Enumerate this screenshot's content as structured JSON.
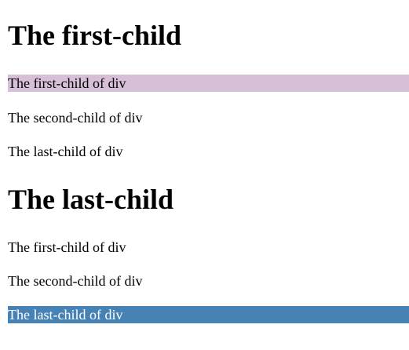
{
  "sections": [
    {
      "heading": "The first-child",
      "items": [
        "The first-child of div",
        "The second-child of div",
        "The last-child of div"
      ],
      "highlight_color": "#d8bfd8"
    },
    {
      "heading": "The last-child",
      "items": [
        "The first-child of div",
        "The second-child of div",
        "The last-child of div"
      ],
      "highlight_color": "#4682b4"
    }
  ]
}
